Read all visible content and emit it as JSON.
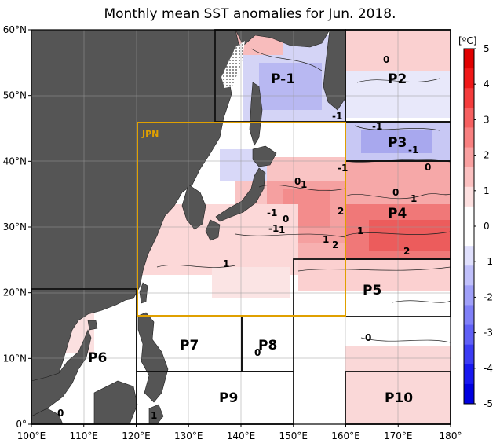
{
  "title": "Monthly mean SST anomalies for Jun. 2018.",
  "map": {
    "lon_ticks": [
      "100°E",
      "110°E",
      "120°E",
      "130°E",
      "140°E",
      "150°E",
      "160°E",
      "170°E",
      "180°"
    ],
    "lat_ticks": [
      "0°",
      "10°N",
      "20°N",
      "30°N",
      "40°N",
      "50°N",
      "60°N"
    ],
    "extent": {
      "lon_min": 100,
      "lon_max": 180,
      "lat_min": 0,
      "lat_max": 60
    },
    "land_color": "#555555",
    "grid_color": "#999999"
  },
  "regions": [
    {
      "id": "P1",
      "label": "P-1",
      "lon": [
        135,
        150
      ],
      "lat": [
        50,
        60
      ]
    },
    {
      "id": "P2",
      "label": "P2",
      "lon": [
        160,
        180
      ],
      "lat": [
        50,
        60
      ]
    },
    {
      "id": "P3",
      "label": "P3",
      "lon": [
        160,
        180
      ],
      "lat": [
        45,
        50
      ]
    },
    {
      "id": "P4",
      "label": "P4",
      "lon": [
        160,
        180
      ],
      "lat": [
        30,
        45
      ]
    },
    {
      "id": "P5",
      "label": "P5",
      "lon": [
        150,
        180
      ],
      "lat": [
        20,
        30
      ]
    },
    {
      "id": "P6",
      "label": "P6",
      "lon": [
        100,
        120
      ],
      "lat": [
        0,
        25
      ]
    },
    {
      "id": "P7",
      "label": "P7",
      "lon": [
        120,
        140
      ],
      "lat": [
        10,
        20
      ]
    },
    {
      "id": "P8",
      "label": "P8",
      "lon": [
        140,
        150
      ],
      "lat": [
        10,
        20
      ]
    },
    {
      "id": "P9",
      "label": "P9",
      "lon": [
        120,
        150
      ],
      "lat": [
        0,
        10
      ]
    },
    {
      "id": "P10",
      "label": "P10",
      "lon": [
        160,
        180
      ],
      "lat": [
        0,
        10
      ]
    }
  ],
  "jpn_box": {
    "label": "JPN",
    "lon": [
      120,
      160
    ],
    "lat": [
      20,
      50
    ],
    "color": "#e0a000"
  },
  "contour_labels": [
    "0",
    "-1",
    "-1",
    "-1",
    "0",
    "-1",
    "0",
    "1",
    "0",
    "-1",
    "0",
    "1",
    "-1",
    "1",
    "2",
    "1",
    "1",
    "2",
    "1",
    "2",
    "1",
    "0",
    "0",
    "0"
  ],
  "colorbar": {
    "unit": "[ºC]",
    "ticks": [
      "5",
      "4",
      "3",
      "2",
      "1",
      "0",
      "-1",
      "-2",
      "-3",
      "-4",
      "-5"
    ],
    "colors": [
      "#e00000",
      "#f01818",
      "#f43c3c",
      "#f66060",
      "#f88080",
      "#f9a0a0",
      "#fbc0c0",
      "#fde0e0",
      "#ffffff",
      "#ffffff",
      "#e0e0fd",
      "#c0c0fb",
      "#a0a0f9",
      "#8080f8",
      "#6060f6",
      "#3c3cf4",
      "#1818f0",
      "#0000e0"
    ]
  }
}
